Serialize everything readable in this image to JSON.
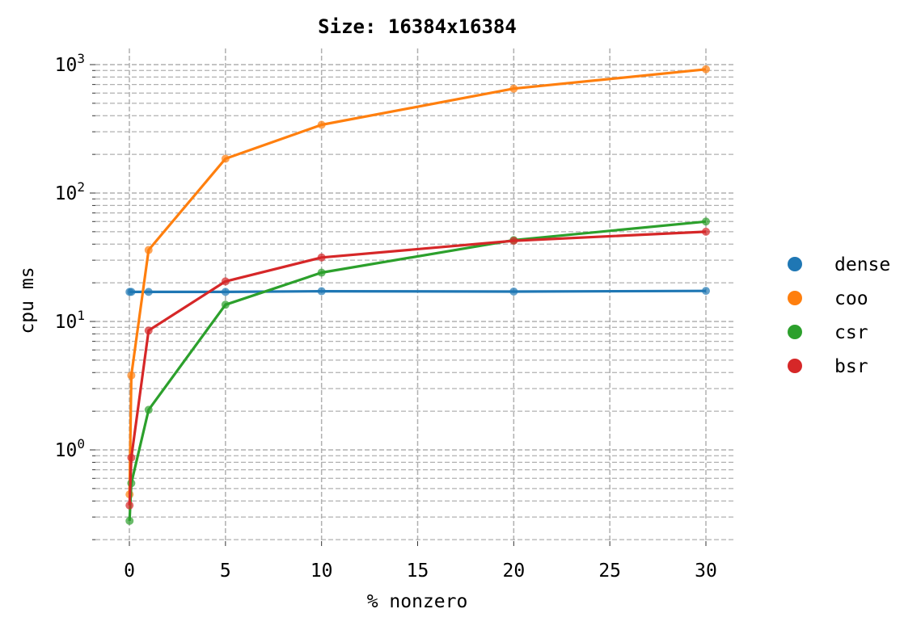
{
  "chart_data": {
    "type": "line",
    "title": "Size: 16384x16384",
    "xlabel": "% nonzero",
    "ylabel": "cpu ms",
    "yscale": "log",
    "xlim": [
      -1.5,
      31.5
    ],
    "ylim": [
      0.18,
      1400
    ],
    "x_ticks": [
      0,
      5,
      10,
      15,
      20,
      25,
      30
    ],
    "x_tick_labels": [
      "0",
      "5",
      "10",
      "15",
      "20",
      "25",
      "30"
    ],
    "y_ticks": [
      1,
      10,
      100,
      1000
    ],
    "y_tick_base": "10",
    "y_tick_exponents": [
      "0",
      "1",
      "2",
      "3"
    ],
    "grid": true,
    "legend_position": "right",
    "x": [
      0.01,
      0.1,
      1,
      5,
      10,
      20,
      30
    ],
    "series": [
      {
        "name": "dense",
        "color": "#1f77b4",
        "values": [
          17,
          17,
          17,
          17,
          17.2,
          17.1,
          17.3
        ]
      },
      {
        "name": "coo",
        "color": "#ff7f0e",
        "values": [
          0.45,
          3.8,
          36,
          185,
          340,
          650,
          920
        ]
      },
      {
        "name": "csr",
        "color": "#2ca02c",
        "values": [
          0.28,
          0.55,
          2.05,
          13.5,
          24,
          43,
          60
        ]
      },
      {
        "name": "bsr",
        "color": "#d62728",
        "values": [
          0.37,
          0.87,
          8.5,
          20.5,
          31.5,
          42.5,
          50
        ]
      }
    ]
  }
}
